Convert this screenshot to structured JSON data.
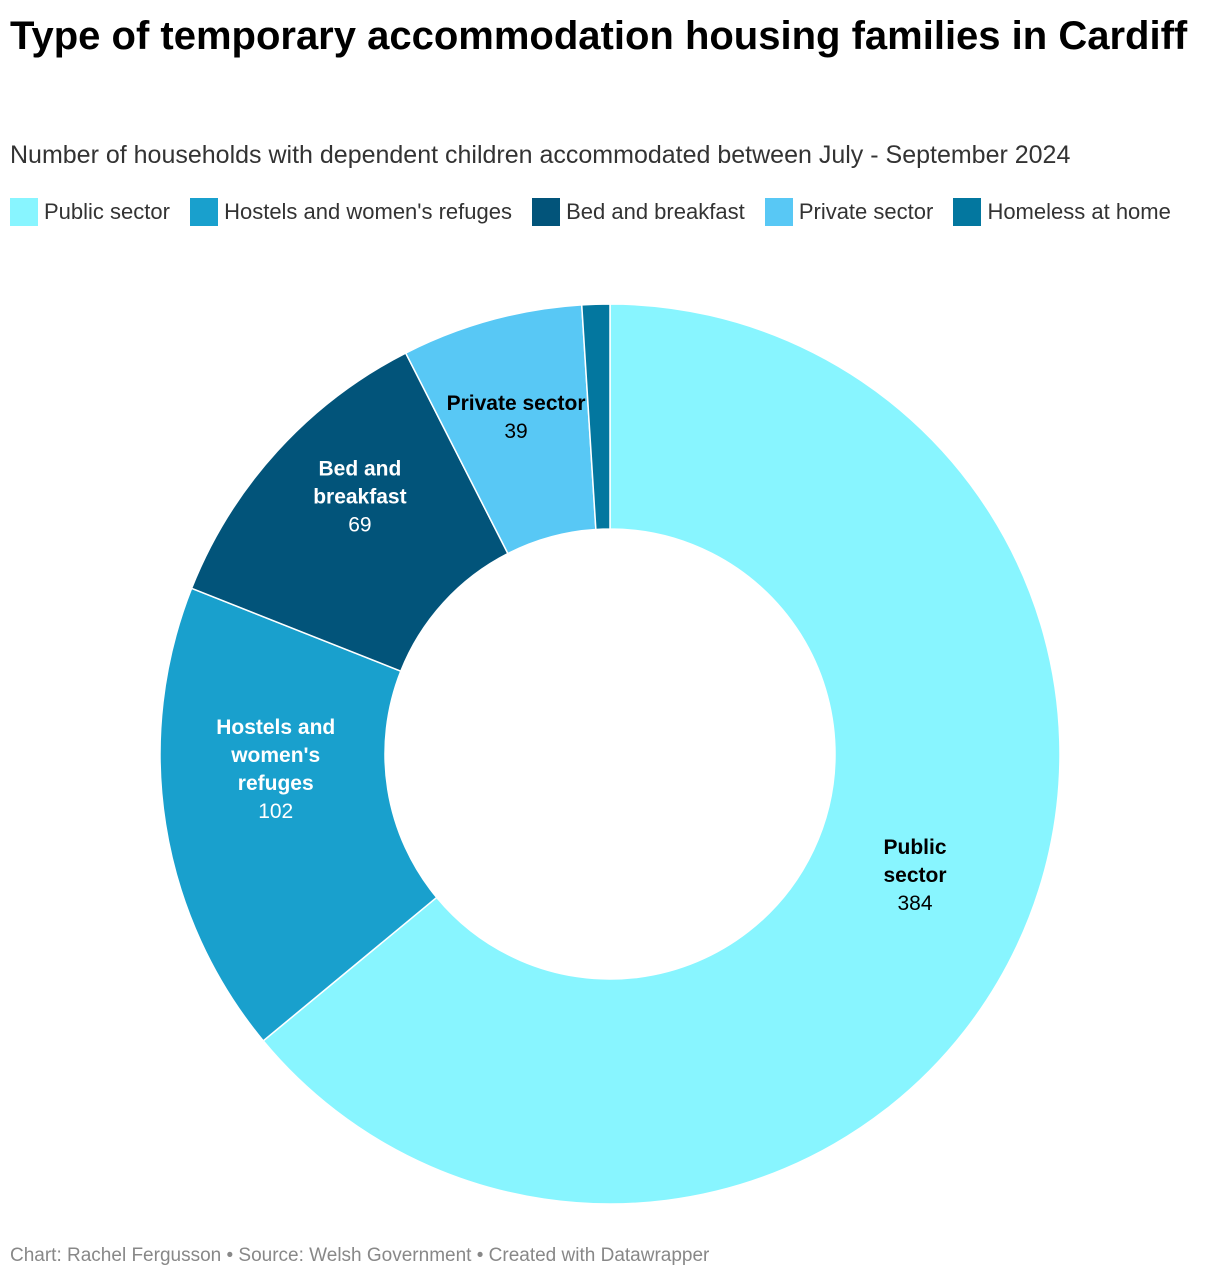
{
  "chart_data": {
    "type": "pie",
    "variant": "donut",
    "title": "Type of temporary accommodation housing families in Cardiff",
    "subtitle": "Number of households with dependent children accommodated between July - September 2024",
    "categories": [
      "Public sector",
      "Hostels and women's refuges",
      "Bed and breakfast",
      "Private sector",
      "Homeless at home"
    ],
    "values": [
      384,
      102,
      69,
      39,
      6
    ],
    "colors": [
      "#88f5ff",
      "#19a0cd",
      "#02547a",
      "#58c8f5",
      "#03779f"
    ],
    "label_colors": [
      "#000000",
      "#ffffff",
      "#ffffff",
      "#000000",
      "#ffffff"
    ],
    "slice_labels": [
      {
        "lines": [
          "Public",
          "sector"
        ],
        "value": "384"
      },
      {
        "lines": [
          "Hostels and",
          "women's",
          "refuges"
        ],
        "value": "102"
      },
      {
        "lines": [
          "Bed and",
          "breakfast"
        ],
        "value": "69"
      },
      {
        "lines": [
          "Private sector"
        ],
        "value": "39"
      },
      null
    ],
    "legend_position": "top"
  },
  "footer": {
    "text": "Chart: Rachel Fergusson • Source: Welsh Government  • Created with Datawrapper"
  }
}
